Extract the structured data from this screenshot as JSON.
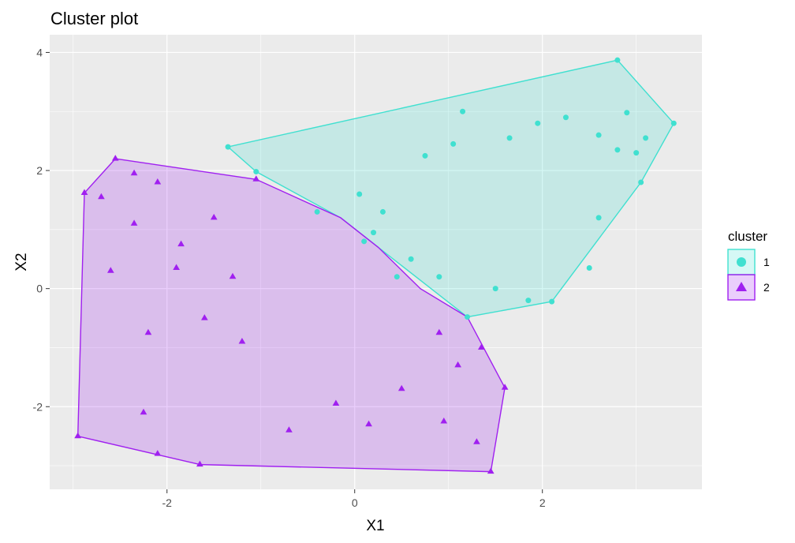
{
  "chart_data": {
    "type": "scatter",
    "title": "Cluster plot",
    "xlabel": "X1",
    "ylabel": "X2",
    "xlim": [
      -3.25,
      3.7
    ],
    "ylim": [
      -3.4,
      4.3
    ],
    "x_ticks": [
      -2,
      0,
      2
    ],
    "y_ticks": [
      -2,
      0,
      2,
      4
    ],
    "x_tick_labels": [
      "-2",
      "0",
      "2"
    ],
    "y_tick_labels": [
      "-2",
      "0",
      "2",
      "4"
    ],
    "grid": true,
    "legend": {
      "title": "cluster",
      "position": "right",
      "entries": [
        "1",
        "2"
      ]
    },
    "series": [
      {
        "name": "1",
        "marker": "circle",
        "color": "#40E0D0",
        "hull": [
          [
            -1.35,
            2.4
          ],
          [
            2.8,
            3.87
          ],
          [
            3.4,
            2.8
          ],
          [
            3.05,
            1.8
          ],
          [
            2.1,
            -0.22
          ],
          [
            1.2,
            -0.48
          ],
          [
            0.25,
            0.7
          ],
          [
            -0.15,
            1.2
          ],
          [
            -1.05,
            1.98
          ]
        ],
        "points": [
          [
            -1.35,
            2.4
          ],
          [
            2.8,
            3.87
          ],
          [
            3.4,
            2.8
          ],
          [
            3.05,
            1.8
          ],
          [
            2.1,
            -0.22
          ],
          [
            1.2,
            -0.48
          ],
          [
            -1.05,
            1.98
          ],
          [
            1.15,
            3.0
          ],
          [
            2.25,
            2.9
          ],
          [
            0.05,
            1.6
          ],
          [
            -0.4,
            1.3
          ],
          [
            0.2,
            0.95
          ],
          [
            0.6,
            0.5
          ],
          [
            0.9,
            0.2
          ],
          [
            1.5,
            0.0
          ],
          [
            1.85,
            -0.2
          ],
          [
            2.6,
            1.2
          ],
          [
            2.9,
            2.98
          ],
          [
            3.1,
            2.55
          ],
          [
            2.6,
            2.6
          ],
          [
            1.95,
            2.8
          ],
          [
            0.3,
            1.3
          ],
          [
            0.1,
            0.8
          ],
          [
            0.45,
            0.2
          ],
          [
            2.5,
            0.35
          ],
          [
            2.8,
            2.35
          ],
          [
            3.0,
            2.3
          ],
          [
            1.05,
            2.45
          ],
          [
            0.75,
            2.25
          ],
          [
            1.65,
            2.55
          ]
        ]
      },
      {
        "name": "2",
        "marker": "triangle",
        "color": "#A020F0",
        "hull": [
          [
            -2.55,
            2.2
          ],
          [
            -1.05,
            1.85
          ],
          [
            -0.15,
            1.2
          ],
          [
            0.25,
            0.7
          ],
          [
            0.7,
            0.0
          ],
          [
            1.2,
            -0.48
          ],
          [
            1.6,
            -1.68
          ],
          [
            1.45,
            -3.1
          ],
          [
            -1.65,
            -2.98
          ],
          [
            -2.95,
            -2.5
          ],
          [
            -2.88,
            1.62
          ]
        ],
        "points": [
          [
            -2.55,
            2.2
          ],
          [
            -1.05,
            1.85
          ],
          [
            -2.95,
            -2.5
          ],
          [
            -2.88,
            1.62
          ],
          [
            -1.65,
            -2.98
          ],
          [
            1.45,
            -3.1
          ],
          [
            1.6,
            -1.68
          ],
          [
            -2.1,
            -2.8
          ],
          [
            -2.6,
            0.3
          ],
          [
            -2.35,
            1.1
          ],
          [
            -2.2,
            -0.75
          ],
          [
            -2.25,
            -2.1
          ],
          [
            -1.85,
            0.75
          ],
          [
            -2.1,
            1.8
          ],
          [
            -2.35,
            1.95
          ],
          [
            -1.5,
            1.2
          ],
          [
            -1.2,
            -0.9
          ],
          [
            -0.7,
            -2.4
          ],
          [
            -0.2,
            -1.95
          ],
          [
            0.15,
            -2.3
          ],
          [
            0.5,
            -1.7
          ],
          [
            0.95,
            -2.25
          ],
          [
            1.3,
            -2.6
          ],
          [
            1.1,
            -1.3
          ],
          [
            1.35,
            -1.0
          ],
          [
            0.9,
            -0.75
          ],
          [
            -1.6,
            -0.5
          ],
          [
            -1.9,
            0.35
          ],
          [
            -1.3,
            0.2
          ],
          [
            -2.7,
            1.55
          ]
        ]
      }
    ]
  }
}
